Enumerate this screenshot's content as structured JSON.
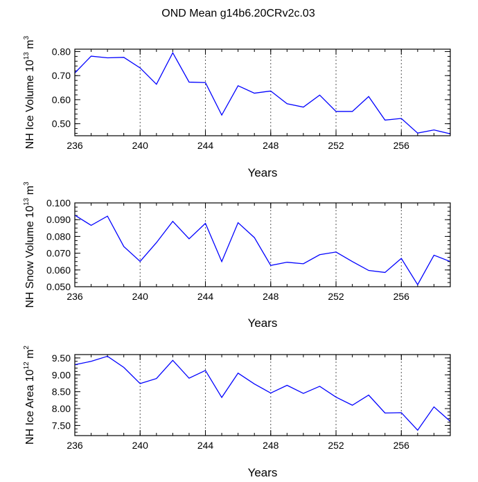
{
  "figure": {
    "title": "OND Mean g14b6.20CRv2c.03"
  },
  "chart_data": [
    {
      "type": "line",
      "title": "",
      "xlabel": "Years",
      "ylabel": {
        "text": "NH Ice Volume 10",
        "sup_exp": "13",
        "unit": " m",
        "sup_unit": "3"
      },
      "x": [
        236,
        237,
        238,
        239,
        240,
        241,
        242,
        243,
        244,
        245,
        246,
        247,
        248,
        249,
        250,
        251,
        252,
        253,
        254,
        255,
        256,
        257,
        258,
        259
      ],
      "values": [
        0.711,
        0.781,
        0.774,
        0.776,
        0.732,
        0.664,
        0.795,
        0.673,
        0.671,
        0.536,
        0.658,
        0.627,
        0.636,
        0.583,
        0.569,
        0.619,
        0.551,
        0.551,
        0.613,
        0.515,
        0.522,
        0.461,
        0.474,
        0.458
      ],
      "xlim": [
        236,
        259
      ],
      "ylim": [
        0.45,
        0.81
      ],
      "xticks": [
        236,
        240,
        244,
        248,
        252,
        256
      ],
      "xtick_labels": [
        "236",
        "240",
        "244",
        "248",
        "252",
        "256"
      ],
      "yticks": [
        0.5,
        0.6,
        0.7,
        0.8
      ],
      "ytick_labels": [
        "0.50",
        "0.60",
        "0.70",
        "0.80"
      ],
      "yminor": 0.02,
      "grid": "vertical-dashed",
      "color": "#0000ff"
    },
    {
      "type": "line",
      "title": "",
      "xlabel": "Years",
      "ylabel": {
        "text": "NH Snow Volume 10",
        "sup_exp": "13",
        "unit": " m",
        "sup_unit": "3"
      },
      "x": [
        236,
        237,
        238,
        239,
        240,
        241,
        242,
        243,
        244,
        245,
        246,
        247,
        248,
        249,
        250,
        251,
        252,
        253,
        254,
        255,
        256,
        257,
        258,
        259
      ],
      "values": [
        0.0927,
        0.0866,
        0.0921,
        0.074,
        0.0651,
        0.0763,
        0.089,
        0.0786,
        0.0878,
        0.065,
        0.0882,
        0.0793,
        0.0627,
        0.0646,
        0.0637,
        0.0691,
        0.0707,
        0.065,
        0.0597,
        0.0585,
        0.0669,
        0.0512,
        0.0688,
        0.065
      ],
      "xlim": [
        236,
        259
      ],
      "ylim": [
        0.05,
        0.1
      ],
      "xticks": [
        236,
        240,
        244,
        248,
        252,
        256
      ],
      "xtick_labels": [
        "236",
        "240",
        "244",
        "248",
        "252",
        "256"
      ],
      "yticks": [
        0.05,
        0.06,
        0.07,
        0.08,
        0.09,
        0.1
      ],
      "ytick_labels": [
        "0.050",
        "0.060",
        "0.070",
        "0.080",
        "0.090",
        "0.100"
      ],
      "yminor": 0.0025,
      "grid": "vertical-dashed",
      "color": "#0000ff"
    },
    {
      "type": "line",
      "title": "",
      "xlabel": "Years",
      "ylabel": {
        "text": "NH Ice Area 10",
        "sup_exp": "12",
        "unit": " m",
        "sup_unit": "2"
      },
      "x": [
        236,
        237,
        238,
        239,
        240,
        241,
        242,
        243,
        244,
        245,
        246,
        247,
        248,
        249,
        250,
        251,
        252,
        253,
        254,
        255,
        256,
        257,
        258,
        259
      ],
      "values": [
        9.3,
        9.4,
        9.55,
        9.22,
        8.74,
        8.89,
        9.43,
        8.9,
        9.13,
        8.33,
        9.05,
        8.73,
        8.46,
        8.69,
        8.45,
        8.66,
        8.34,
        8.1,
        8.4,
        7.87,
        7.88,
        7.36,
        8.05,
        7.62
      ],
      "xlim": [
        236,
        259
      ],
      "ylim": [
        7.2,
        9.6
      ],
      "xticks": [
        236,
        240,
        244,
        248,
        252,
        256
      ],
      "xtick_labels": [
        "236",
        "240",
        "244",
        "248",
        "252",
        "256"
      ],
      "yticks": [
        7.5,
        8.0,
        8.5,
        9.0,
        9.5
      ],
      "ytick_labels": [
        "7.50",
        "8.00",
        "8.50",
        "9.00",
        "9.50"
      ],
      "yminor": 0.1,
      "grid": "vertical-dashed",
      "color": "#0000ff"
    }
  ]
}
